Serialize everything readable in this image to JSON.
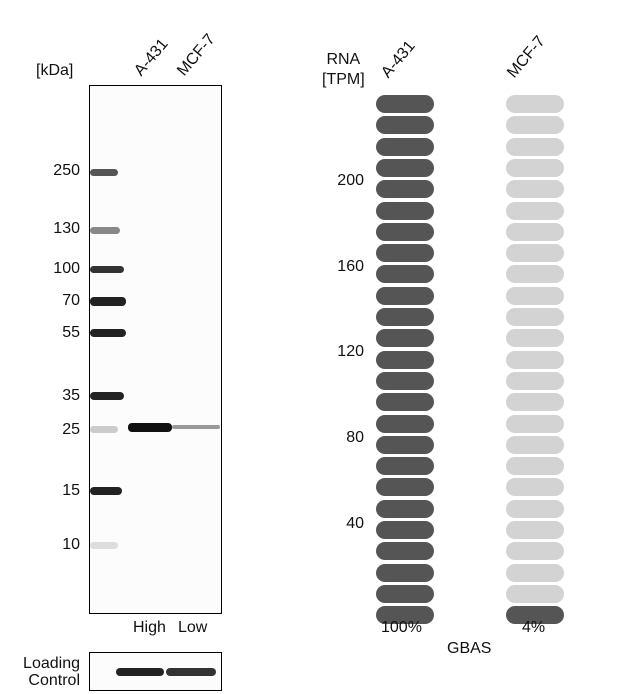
{
  "blot": {
    "unit_label": "[kDa]",
    "lanes": [
      "A-431",
      "MCF-7"
    ],
    "markers": [
      "250",
      "130",
      "100",
      "70",
      "55",
      "35",
      "25",
      "15",
      "10"
    ],
    "bottom_labels": [
      "High",
      "Low"
    ],
    "loading_control_label": [
      "Loading",
      "Control"
    ]
  },
  "rna": {
    "axis_label": [
      "RNA",
      "[TPM]"
    ],
    "ticks": [
      "200",
      "160",
      "120",
      "80",
      "40"
    ],
    "samples": [
      {
        "name": "A-431",
        "percent": "100%",
        "filled_pills": 25,
        "total_pills": 25
      },
      {
        "name": "MCF-7",
        "percent": "4%",
        "filled_pills": 1,
        "total_pills": 25
      }
    ],
    "gene": "GBAS",
    "colors": {
      "filled": "#555555",
      "empty": "#d3d3d3"
    }
  }
}
